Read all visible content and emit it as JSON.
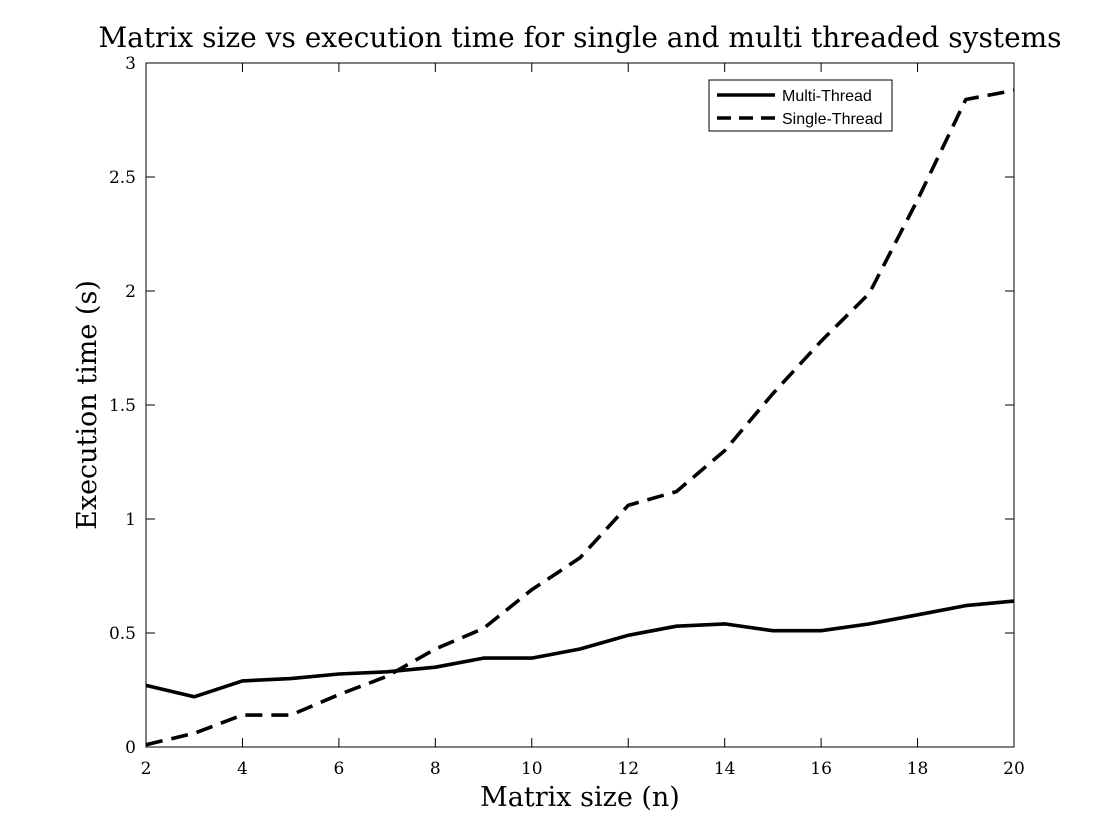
{
  "chart_data": {
    "type": "line",
    "title": "Matrix size vs execution time for single and multi threaded systems",
    "xlabel": "Matrix size (n)",
    "ylabel": "Execution time (s)",
    "xlim": [
      2,
      20
    ],
    "ylim": [
      0,
      3
    ],
    "xticks": [
      2,
      4,
      6,
      8,
      10,
      12,
      14,
      16,
      18,
      20
    ],
    "yticks": [
      0,
      0.5,
      1,
      1.5,
      2,
      2.5,
      3
    ],
    "grid": false,
    "legend_position": "top-right",
    "x": [
      2,
      3,
      4,
      5,
      6,
      7,
      8,
      9,
      10,
      11,
      12,
      13,
      14,
      15,
      16,
      17,
      18,
      19,
      20
    ],
    "series": [
      {
        "name": "Multi-Thread",
        "style": "solid",
        "color": "#000000",
        "values": [
          0.27,
          0.22,
          0.29,
          0.3,
          0.32,
          0.33,
          0.35,
          0.39,
          0.39,
          0.43,
          0.49,
          0.53,
          0.54,
          0.51,
          0.51,
          0.54,
          0.58,
          0.62,
          0.64
        ]
      },
      {
        "name": "Single-Thread",
        "style": "dashed",
        "color": "#000000",
        "values": [
          0.01,
          0.06,
          0.14,
          0.14,
          0.23,
          0.31,
          0.43,
          0.52,
          0.69,
          0.83,
          1.06,
          1.12,
          1.3,
          1.55,
          1.78,
          1.99,
          2.4,
          2.84,
          2.88
        ]
      }
    ]
  }
}
